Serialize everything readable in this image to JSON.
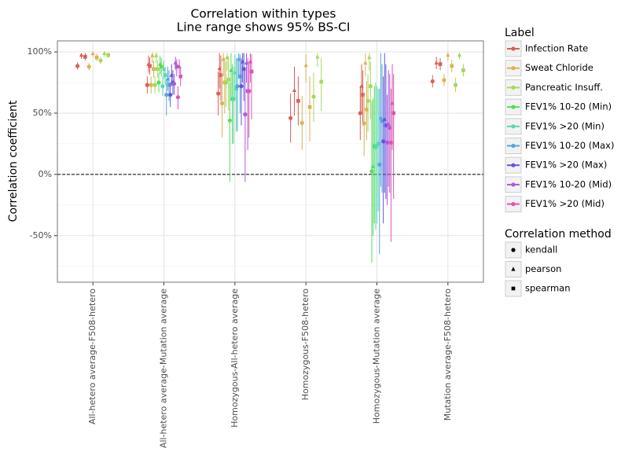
{
  "chart_data": {
    "type": "pointrange",
    "title": "Correlation within types",
    "subtitle": "Line range shows 95% BS-CI",
    "y_label": "Correlation coefficient",
    "categories": [
      "All-hetero average-F508-hetero",
      "All-hetero average-Mutation average",
      "Homozygous-All-hetero average",
      "Homozygous-F508-hetero",
      "Homozygous-Mutation average",
      "Mutation average-F508-hetero"
    ],
    "ylim": [
      -88,
      109
    ],
    "yticks": [
      {
        "value": -50,
        "label": "-50%"
      },
      {
        "value": 0,
        "label": "0%"
      },
      {
        "value": 50,
        "label": "50%"
      },
      {
        "value": 100,
        "label": "100%"
      }
    ],
    "yminor": [
      -75,
      -25,
      25,
      75
    ],
    "hline": 0,
    "grid": true,
    "legend_title": "Label",
    "method_legend_title": "Correlation method",
    "methods": [
      {
        "name": "kendall",
        "shape": "circle"
      },
      {
        "name": "pearson",
        "shape": "triangle"
      },
      {
        "name": "spearman",
        "shape": "square"
      }
    ],
    "series": [
      {
        "name": "Infection Rate",
        "color": "#db5f57",
        "values": [
          [
            88.5,
            97.4,
            96
          ],
          [
            73,
            90,
            88.5
          ],
          [
            66,
            86.5,
            81
          ],
          [
            46,
            68.6,
            60
          ],
          [
            50,
            72,
            65
          ],
          [
            76,
            91,
            90
          ]
        ],
        "lower": [
          [
            85.5,
            94.4,
            93
          ],
          [
            66,
            83,
            81.5
          ],
          [
            48,
            70,
            60
          ],
          [
            26,
            48,
            40
          ],
          [
            28,
            50,
            40
          ],
          [
            71,
            86,
            85
          ]
        ],
        "upper": [
          [
            91.5,
            99,
            99
          ],
          [
            80,
            97,
            95.5
          ],
          [
            84,
            99,
            97
          ],
          [
            66,
            88,
            80
          ],
          [
            72,
            90,
            85
          ],
          [
            81,
            96,
            95
          ]
        ]
      },
      {
        "name": "Sweat Chloride",
        "color": "#dbb257",
        "values": [
          [
            88,
            98.7,
            95.5
          ],
          [
            73,
            97,
            86
          ],
          [
            58,
            94,
            75
          ],
          [
            42,
            89,
            55
          ],
          [
            41.7,
            91,
            53
          ],
          [
            77,
            97.4,
            88.5
          ]
        ],
        "lower": [
          [
            85,
            96,
            92.5
          ],
          [
            66,
            91,
            79
          ],
          [
            30,
            80,
            50
          ],
          [
            20,
            75,
            27
          ],
          [
            15,
            80,
            28
          ],
          [
            72,
            93,
            83.5
          ]
        ],
        "upper": [
          [
            91,
            99.5,
            98.5
          ],
          [
            80,
            99.5,
            93
          ],
          [
            82,
            99,
            95
          ],
          [
            64,
            98,
            80
          ],
          [
            65,
            99,
            76
          ],
          [
            82,
            99.5,
            93.5
          ]
        ]
      },
      {
        "name": "Pancreatic Insuff.",
        "color": "#a6d957",
        "values": [
          [
            93,
            98.7,
            97.4
          ],
          [
            73,
            97,
            86
          ],
          [
            75,
            95.5,
            77.5
          ],
          [
            63.5,
            96,
            75.6
          ],
          [
            60,
            95.5,
            72
          ],
          [
            73,
            97.4,
            85
          ]
        ],
        "lower": [
          [
            90,
            96,
            95
          ],
          [
            66,
            91,
            79
          ],
          [
            55,
            85,
            52
          ],
          [
            43,
            88,
            52
          ],
          [
            35,
            85,
            45
          ],
          [
            67,
            94,
            80
          ]
        ],
        "upper": [
          [
            96,
            99.5,
            99.5
          ],
          [
            80,
            99.5,
            93
          ],
          [
            92,
            99,
            96
          ],
          [
            83,
            99,
            95
          ],
          [
            82,
            99,
            92
          ],
          [
            79,
            99.5,
            90
          ]
        ]
      },
      {
        "name": "FEV1% 10-20 (Min)",
        "color": "#57db5e",
        "values": [
          null,
          [
            75,
            90,
            88
          ],
          [
            44,
            85,
            61.5
          ],
          null,
          [
            2.5,
            6.4,
            23
          ],
          null
        ],
        "lower": [
          null,
          [
            67,
            82,
            80
          ],
          [
            -6,
            62,
            25
          ],
          null,
          [
            -72,
            -50,
            -40
          ],
          null
        ],
        "upper": [
          null,
          [
            83,
            97,
            95
          ],
          [
            75,
            99,
            90
          ],
          null,
          [
            60,
            62,
            72
          ],
          null
        ]
      },
      {
        "name": "FEV1% >20 (Min)",
        "color": "#57dba8",
        "values": [
          null,
          [
            72,
            86,
            81
          ],
          [
            61.5,
            83,
            70
          ],
          null,
          [
            22,
            24,
            25
          ],
          null
        ],
        "lower": [
          null,
          [
            64,
            78,
            73
          ],
          [
            25,
            60,
            35
          ],
          null,
          [
            -45,
            -40,
            -30
          ],
          null
        ],
        "upper": [
          null,
          [
            80,
            93,
            88
          ],
          [
            88,
            98,
            95
          ],
          null,
          [
            75,
            72,
            70
          ],
          null
        ]
      },
      {
        "name": "FEV1% 10-20 (Max)",
        "color": "#57a5db",
        "values": [
          null,
          [
            65,
            78,
            73
          ],
          [
            72,
            94,
            80
          ],
          null,
          [
            8,
            46,
            43.6
          ],
          null
        ],
        "lower": [
          null,
          [
            48,
            68,
            60
          ],
          [
            35,
            78,
            50
          ],
          null,
          [
            -65,
            -10,
            -15
          ],
          null
        ],
        "upper": [
          null,
          [
            78,
            88,
            85
          ],
          [
            95,
            99,
            98
          ],
          null,
          [
            70,
            99,
            90
          ],
          null
        ]
      },
      {
        "name": "FEV1% >20 (Max)",
        "color": "#5f57db",
        "values": [
          null,
          [
            65,
            81,
            75
          ],
          [
            72,
            92,
            86
          ],
          null,
          [
            27,
            45,
            40
          ],
          null
        ],
        "lower": [
          null,
          [
            55,
            72,
            65
          ],
          [
            40,
            75,
            60
          ],
          null,
          [
            -40,
            -15,
            -20
          ],
          null
        ],
        "upper": [
          null,
          [
            75,
            90,
            85
          ],
          [
            95,
            99,
            99
          ],
          null,
          [
            80,
            99,
            90
          ],
          null
        ]
      },
      {
        "name": "FEV1% 10-20 (Mid)",
        "color": "#b257db",
        "values": [
          null,
          [
            74,
            91,
            88
          ],
          [
            49,
            91,
            68
          ],
          null,
          [
            26,
            41,
            38
          ],
          null
        ],
        "lower": [
          null,
          [
            65,
            85,
            80
          ],
          [
            -6,
            75,
            20
          ],
          null,
          [
            -25,
            -10,
            -15
          ],
          null
        ],
        "upper": [
          null,
          [
            82,
            96,
            94
          ],
          [
            85,
            99,
            95
          ],
          null,
          [
            65,
            85,
            82
          ],
          null
        ]
      },
      {
        "name": "FEV1% >20 (Mid)",
        "color": "#db57b0",
        "values": [
          null,
          [
            63,
            88,
            80
          ],
          [
            68,
            92,
            84
          ],
          null,
          [
            26,
            58,
            50
          ],
          null
        ],
        "lower": [
          null,
          [
            53,
            82,
            72
          ],
          [
            30,
            75,
            45
          ],
          null,
          [
            -55,
            20,
            -20
          ],
          null
        ],
        "upper": [
          null,
          [
            72,
            94,
            88
          ],
          [
            92,
            99,
            98
          ],
          null,
          [
            70,
            90,
            82
          ],
          null
        ]
      }
    ]
  }
}
